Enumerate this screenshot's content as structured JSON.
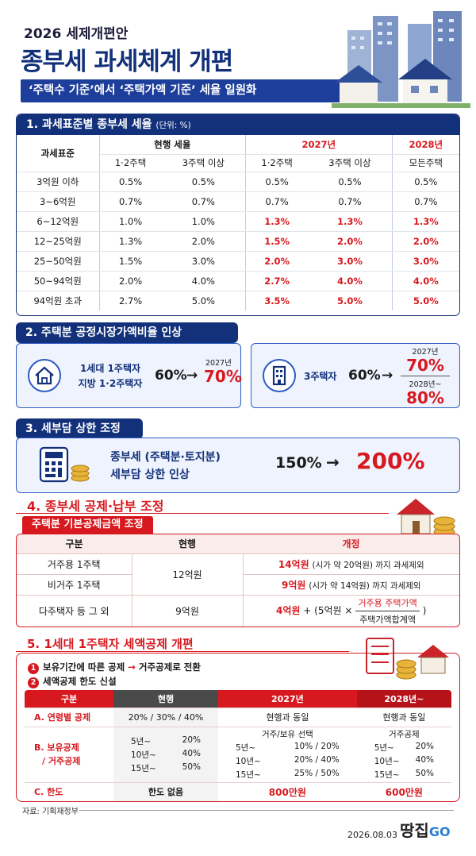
{
  "header": {
    "kicker": "2026 세제개편안",
    "title": "종부세 과세체계 개편",
    "subtitle": "‘주택수 기준’에서 ‘주택가액 기준’ 세율 일원화"
  },
  "section1": {
    "title": "1. 과세표준별 종부세 세율",
    "unit": "(단위: %)",
    "table": {
      "corner": "과세표준",
      "groups": [
        "현행 세율",
        "2027년",
        "2028년"
      ],
      "subheaders": [
        "1·2주택",
        "3주택 이상",
        "1·2주택",
        "3주택 이상",
        "모든주택"
      ],
      "rows": [
        [
          "3억원 이하",
          "0.5%",
          "0.5%",
          "0.5%",
          "0.5%",
          "0.5%"
        ],
        [
          "3~6억원",
          "0.7%",
          "0.7%",
          "0.7%",
          "0.7%",
          "0.7%"
        ],
        [
          "6~12억원",
          "1.0%",
          "1.0%",
          "1.3%",
          "1.3%",
          "1.3%"
        ],
        [
          "12~25억원",
          "1.3%",
          "2.0%",
          "1.5%",
          "2.0%",
          "2.0%"
        ],
        [
          "25~50억원",
          "1.5%",
          "3.0%",
          "2.0%",
          "3.0%",
          "3.0%"
        ],
        [
          "50~94억원",
          "2.0%",
          "4.0%",
          "2.7%",
          "4.0%",
          "4.0%"
        ],
        [
          "94억원 초과",
          "2.7%",
          "5.0%",
          "3.5%",
          "5.0%",
          "5.0%"
        ]
      ]
    }
  },
  "section2": {
    "title": "2. 주택분 공정시장가액비율 인상",
    "cards": [
      {
        "label": [
          "1세대 1주택자",
          "지방 1·2주택자"
        ],
        "from": "60%",
        "arrow": "→",
        "steps": [
          {
            "year": "2027년",
            "value": "70%"
          }
        ]
      },
      {
        "label": [
          "3주택자"
        ],
        "from": "60%",
        "arrow": "→",
        "steps": [
          {
            "year": "2027년",
            "value": "70%"
          },
          {
            "year": "2028년~",
            "value": "80%"
          }
        ]
      }
    ]
  },
  "section3": {
    "title": "3. 세부담 상한 조정",
    "lines": [
      "종부세 (주택분·토지분)",
      "세부담 상한 인상"
    ],
    "from": "150%",
    "arrow": "→",
    "to": "200%"
  },
  "section4": {
    "title": "4. 종부세 공제·납부 조정",
    "tab": "주택분 기본공제금액 조정",
    "headers": [
      "구분",
      "현행",
      "개정"
    ],
    "rows": [
      {
        "label": "거주용 1주택",
        "current": "12억원",
        "amount": "14억원",
        "note": "(시가 약 20억원) 까지 과세제외"
      },
      {
        "label": "비거주 1주택",
        "amount": "9억원",
        "note": "(시가 약 14억원) 까지 과세제외"
      },
      {
        "label": "다주택자 등 그 외",
        "current": "9억원",
        "amount": "4억원",
        "formula": {
          "open": "+ (5억원 ×",
          "numerator": "거주용 주택가액",
          "denominator": "주택가액합계액",
          "close": ")"
        }
      }
    ]
  },
  "section5": {
    "title": "5. 1세대 1주택자 세액공제 개편",
    "notes": [
      {
        "num": "1",
        "text": "보유기간에 따른 공제",
        "arrow": "→",
        "after": "거주공제로 전환"
      },
      {
        "num": "2",
        "text": "세액공제 한도 신설"
      }
    ],
    "headers": [
      "구분",
      "현행",
      "2027년",
      "2028년~"
    ],
    "rowA": {
      "label": "A. 연령별 공제",
      "current": "20% / 30% / 40%",
      "y2027": "현행과 동일",
      "y2028": "현행과 동일"
    },
    "rowB": {
      "label": [
        "B. 보유공제",
        "/ 거주공제"
      ],
      "current": [
        [
          "5년~",
          "20%"
        ],
        [
          "10년~",
          "40%"
        ],
        [
          "15년~",
          "50%"
        ]
      ],
      "y2027": {
        "heading": "거주/보유 선택",
        "rows": [
          [
            "5년~",
            "10% / 20%"
          ],
          [
            "10년~",
            "20% / 40%"
          ],
          [
            "15년~",
            "25% / 50%"
          ]
        ]
      },
      "y2028": {
        "heading": "거주공제",
        "rows": [
          [
            "5년~",
            "20%"
          ],
          [
            "10년~",
            "40%"
          ],
          [
            "15년~",
            "50%"
          ]
        ]
      }
    },
    "rowC": {
      "label": "C. 한도",
      "current": "한도 없음",
      "y2027": "800만원",
      "y2028": "600만원"
    }
  },
  "footer": {
    "source": "자료: 기획재정부",
    "date": "2026.08.03",
    "brand": "땅집",
    "brand_suffix": "GO"
  }
}
